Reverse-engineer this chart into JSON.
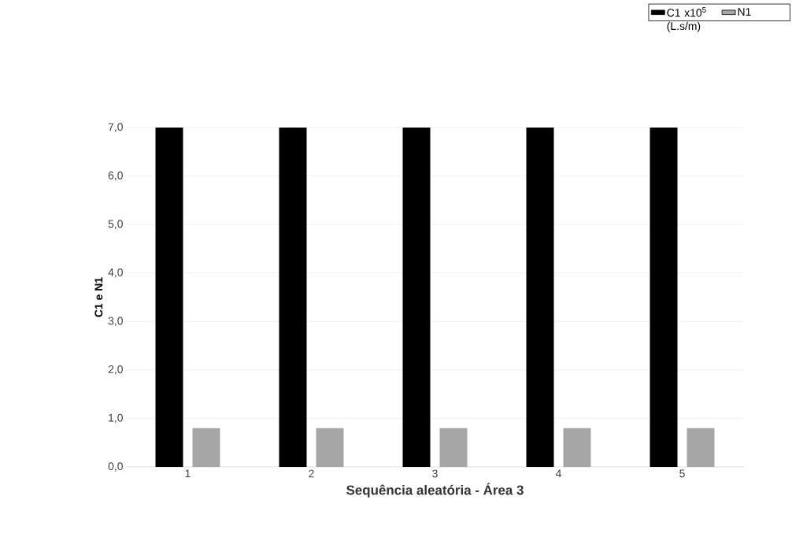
{
  "chart_data": {
    "type": "bar",
    "xlabel": "Sequência aleatória - Área 3",
    "ylabel": "C1 e N1",
    "categories": [
      "1",
      "2",
      "3",
      "4",
      "5"
    ],
    "series": [
      {
        "name": "C1 x10$^{5}$ (L.s/m)",
        "color": "#000000",
        "values": [
          7.0,
          7.0,
          7.0,
          7.0,
          7.0
        ]
      },
      {
        "name": "N1",
        "color": "#a6a6a6",
        "values": [
          0.8,
          0.8,
          0.8,
          0.8,
          0.8
        ]
      }
    ],
    "ylim": [
      0,
      7
    ],
    "yticks": [
      {
        "value": 0,
        "label": "0,0"
      },
      {
        "value": 1,
        "label": "1,0"
      },
      {
        "value": 2,
        "label": "2,0"
      },
      {
        "value": 3,
        "label": "3,0"
      },
      {
        "value": 4,
        "label": "4,0"
      },
      {
        "value": 5,
        "label": "5,0"
      },
      {
        "value": 6,
        "label": "6,0"
      },
      {
        "value": 7,
        "label": "7,0"
      }
    ],
    "grid": "y",
    "legend": "top right"
  }
}
